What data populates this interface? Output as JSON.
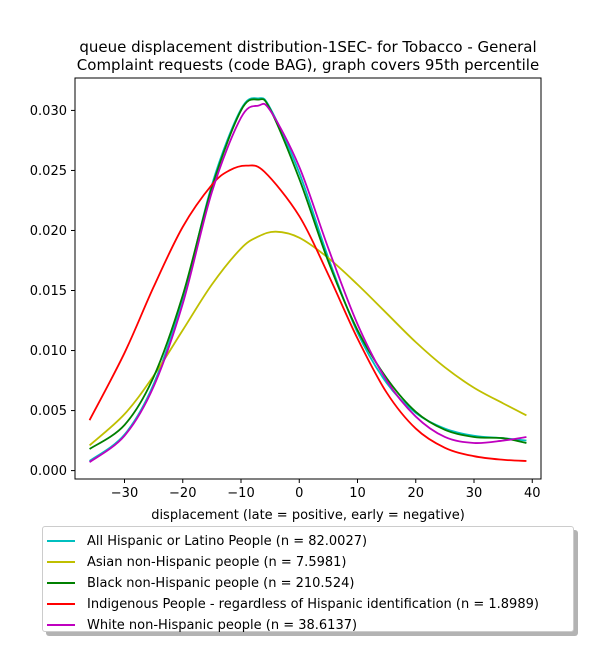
{
  "chart_data": {
    "type": "line",
    "title_line1": "queue displacement distribution-1SEC-  for Tobacco - General",
    "title_line2": "Complaint  requests (code BAG), graph covers 95th percentile",
    "xlabel": "displacement (late = positive, early = negative)",
    "ylabel": "",
    "xlim": [
      -38.5,
      41.5
    ],
    "ylim": [
      -0.0007,
      0.0327
    ],
    "xticks": [
      -30,
      -20,
      -10,
      0,
      10,
      20,
      30,
      40
    ],
    "yticks": [
      0.0,
      0.005,
      0.01,
      0.015,
      0.02,
      0.025,
      0.03
    ],
    "ytick_labels": [
      "0.000",
      "0.005",
      "0.010",
      "0.015",
      "0.020",
      "0.025",
      "0.030"
    ],
    "grid": false,
    "legend_position": "below",
    "series": [
      {
        "name": "All Hispanic or Latino People (n = 82.0027)",
        "color": "#00bfbf",
        "x": [
          -36,
          -30,
          -25,
          -20,
          -15,
          -10,
          -7,
          -5,
          0,
          5,
          10,
          15,
          20,
          25,
          30,
          35,
          39
        ],
        "y": [
          0.0008,
          0.003,
          0.0072,
          0.0143,
          0.0238,
          0.0301,
          0.031,
          0.0302,
          0.0248,
          0.0177,
          0.0115,
          0.0073,
          0.0048,
          0.0035,
          0.0029,
          0.0027,
          0.0025
        ]
      },
      {
        "name": "Asian non-Hispanic people (n = 7.5981)",
        "color": "#bfbf00",
        "x": [
          -36,
          -30,
          -25,
          -20,
          -15,
          -10,
          -7,
          -4,
          0,
          5,
          10,
          15,
          20,
          25,
          30,
          35,
          39
        ],
        "y": [
          0.0021,
          0.0047,
          0.0079,
          0.0117,
          0.0155,
          0.0185,
          0.0195,
          0.0199,
          0.0194,
          0.0177,
          0.0155,
          0.0131,
          0.0107,
          0.0086,
          0.0069,
          0.0056,
          0.0046
        ]
      },
      {
        "name": "Black non-Hispanic people (n = 210.524)",
        "color": "#008000",
        "x": [
          -36,
          -30,
          -25,
          -20,
          -15,
          -10,
          -7,
          -5,
          0,
          5,
          10,
          15,
          20,
          25,
          30,
          35,
          39
        ],
        "y": [
          0.0018,
          0.0038,
          0.0078,
          0.0146,
          0.0236,
          0.03,
          0.0309,
          0.0301,
          0.0243,
          0.0174,
          0.0117,
          0.0077,
          0.0049,
          0.0034,
          0.0028,
          0.0027,
          0.0023
        ]
      },
      {
        "name": "Indigenous People - regardless of Hispanic identification (n = 1.8989)",
        "color": "#ff0000",
        "x": [
          -36,
          -30,
          -25,
          -20,
          -15,
          -12,
          -9,
          -6,
          0,
          5,
          10,
          15,
          20,
          25,
          30,
          35,
          39
        ],
        "y": [
          0.0042,
          0.0098,
          0.0153,
          0.0203,
          0.0238,
          0.025,
          0.0254,
          0.0249,
          0.0212,
          0.0163,
          0.011,
          0.0065,
          0.0035,
          0.0019,
          0.0012,
          0.0009,
          0.0008
        ]
      },
      {
        "name": "White non-Hispanic people (n = 38.6137)",
        "color": "#bf00bf",
        "x": [
          -36,
          -30,
          -25,
          -20,
          -15,
          -10,
          -7,
          -5,
          0,
          5,
          10,
          15,
          20,
          25,
          30,
          35,
          39
        ],
        "y": [
          0.0007,
          0.0029,
          0.007,
          0.0139,
          0.0232,
          0.0294,
          0.0304,
          0.03,
          0.0253,
          0.0185,
          0.0122,
          0.0075,
          0.0045,
          0.0028,
          0.0023,
          0.0025,
          0.0028
        ]
      }
    ]
  }
}
